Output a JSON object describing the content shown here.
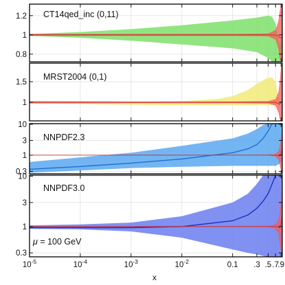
{
  "figure": {
    "xlabel": "x",
    "mu_label": "μ = 100 GeV",
    "mu_label_parts": {
      "symbol": "μ",
      "rest": " = 100 GeV"
    }
  },
  "colors": {
    "reference_band": "#f05a5a",
    "ct14_band": "#7ee06a",
    "mrst_band": "#f2ea78",
    "nnpdf23_band": "#5aa8f0",
    "nnpdf23_line": "#1f6fd0",
    "nnpdf30_band": "#6a7ef0",
    "nnpdf30_line": "#1a2fc0",
    "reference_line": "#c02020"
  },
  "chart_data": [
    {
      "type": "area",
      "panel_label": "CT14qed_inc (0,11)",
      "xscale": "log",
      "yscale": "linear",
      "xlim": [
        1e-05,
        0.95
      ],
      "ylim": [
        0.72,
        1.32
      ],
      "yticks": [
        0.8,
        1,
        1.2
      ],
      "ytick_labels": [
        "0.8",
        "1",
        "1.2"
      ],
      "grid": true,
      "series": [
        {
          "role": "band",
          "color_key": "ct14_band",
          "x": [
            1e-05,
            0.0001,
            0.001,
            0.01,
            0.1,
            0.3,
            0.5,
            0.6,
            0.7,
            0.78,
            0.85,
            0.9,
            0.95
          ],
          "upper": [
            1.01,
            1.03,
            1.06,
            1.1,
            1.15,
            1.18,
            1.2,
            1.19,
            1.12,
            0.98,
            0.9,
            0.98,
            1.05
          ],
          "lower": [
            0.99,
            0.97,
            0.94,
            0.9,
            0.86,
            0.82,
            0.76,
            0.72,
            0.72,
            0.72,
            0.72,
            0.74,
            0.78
          ]
        },
        {
          "role": "reference",
          "color_key": "reference_band",
          "x": [
            1e-05,
            0.001,
            0.1,
            0.5,
            0.7,
            0.8,
            0.85,
            0.9,
            0.95
          ],
          "upper": [
            1.01,
            1.01,
            1.01,
            1.015,
            1.05,
            1.15,
            1.25,
            1.32,
            1.32
          ],
          "lower": [
            0.99,
            0.99,
            0.99,
            0.985,
            0.95,
            0.85,
            0.75,
            0.72,
            0.72
          ]
        }
      ]
    },
    {
      "type": "area",
      "panel_label": "MRST2004 (0,1)",
      "xscale": "log",
      "yscale": "linear",
      "xlim": [
        1e-05,
        0.95
      ],
      "ylim": [
        0.55,
        1.95
      ],
      "yticks": [
        1,
        1.5
      ],
      "ytick_labels": [
        "1",
        "1.5"
      ],
      "grid": true,
      "series": [
        {
          "role": "band",
          "color_key": "mrst_band",
          "x": [
            1e-05,
            0.0001,
            0.001,
            0.01,
            0.05,
            0.1,
            0.2,
            0.3,
            0.5,
            0.6,
            0.7,
            0.78,
            0.85,
            0.9,
            0.95
          ],
          "upper": [
            1.0,
            1.0,
            1.01,
            1.03,
            1.08,
            1.15,
            1.3,
            1.45,
            1.6,
            1.6,
            1.5,
            1.2,
            1.0,
            1.0,
            1.0
          ],
          "lower": [
            0.98,
            0.96,
            0.94,
            0.93,
            0.93,
            0.93,
            0.93,
            0.93,
            0.93,
            0.93,
            0.93,
            0.95,
            1.0,
            1.0,
            1.0
          ]
        },
        {
          "role": "reference",
          "color_key": "reference_band",
          "x": [
            1e-05,
            0.001,
            0.1,
            0.5,
            0.7,
            0.8,
            0.85,
            0.9,
            0.95
          ],
          "upper": [
            1.03,
            1.02,
            1.02,
            1.03,
            1.08,
            1.25,
            1.5,
            1.9,
            1.95
          ],
          "lower": [
            0.97,
            0.98,
            0.98,
            0.97,
            0.92,
            0.75,
            0.6,
            0.55,
            0.55
          ]
        }
      ]
    },
    {
      "type": "area",
      "panel_label": "NNPDF2.3",
      "xscale": "log",
      "yscale": "log",
      "xlim": [
        1e-05,
        0.95
      ],
      "ylim": [
        0.25,
        10.5
      ],
      "yticks": [
        0.3,
        1,
        3,
        10
      ],
      "ytick_labels": [
        "0.3",
        "1",
        "3",
        "10"
      ],
      "grid": true,
      "series": [
        {
          "role": "band",
          "color_key": "nnpdf23_band",
          "x": [
            1e-05,
            0.0001,
            0.001,
            0.01,
            0.1,
            0.2,
            0.3,
            0.4,
            0.5,
            0.6,
            0.7,
            0.8,
            0.9,
            0.95
          ],
          "upper": [
            0.6,
            0.85,
            1.2,
            2.0,
            3.5,
            5.0,
            7.0,
            9.5,
            10.5,
            10.5,
            10.5,
            10.5,
            10.5,
            10.5
          ],
          "lower": [
            0.27,
            0.32,
            0.38,
            0.42,
            0.45,
            0.45,
            0.45,
            0.45,
            0.45,
            0.45,
            0.45,
            0.5,
            0.6,
            0.6
          ]
        },
        {
          "role": "central",
          "color_key": "nnpdf23_line",
          "x": [
            1e-05,
            0.0001,
            0.001,
            0.01,
            0.1,
            0.2,
            0.3,
            0.4,
            0.5,
            0.6
          ],
          "y": [
            0.35,
            0.43,
            0.55,
            0.75,
            1.2,
            1.6,
            2.2,
            3.5,
            6.0,
            10.5
          ]
        },
        {
          "role": "reference",
          "color_key": "reference_band",
          "x": [
            1e-05,
            0.001,
            0.1,
            0.5,
            0.7,
            0.8,
            0.85,
            0.9,
            0.95
          ],
          "upper": [
            1.02,
            1.02,
            1.02,
            1.03,
            1.1,
            1.4,
            2.0,
            4.0,
            10.5
          ],
          "lower": [
            0.98,
            0.98,
            0.98,
            0.97,
            0.9,
            0.7,
            0.45,
            0.3,
            0.25
          ]
        }
      ]
    },
    {
      "type": "area",
      "panel_label": "NNPDF3.0",
      "xscale": "log",
      "yscale": "log",
      "xlim": [
        1e-05,
        0.95
      ],
      "ylim": [
        0.25,
        10.5
      ],
      "yticks": [
        0.3,
        1,
        3,
        10
      ],
      "ytick_labels": [
        "0.3",
        "1",
        "3",
        "10"
      ],
      "xticks": [
        1e-05,
        0.0001,
        0.001,
        0.01,
        0.1,
        0.3,
        0.5,
        0.7,
        0.9
      ],
      "xtick_labels": [
        "10^-5",
        "10^-4",
        "10^-3",
        "10^-2",
        "0.1",
        ".3",
        ".5",
        ".7",
        ".9"
      ],
      "grid": true,
      "series": [
        {
          "role": "band",
          "color_key": "nnpdf30_band",
          "x": [
            1e-05,
            0.0001,
            0.001,
            0.01,
            0.1,
            0.2,
            0.3,
            0.4,
            0.5,
            0.6,
            0.7,
            0.8,
            0.9,
            0.95
          ],
          "upper": [
            1.05,
            1.1,
            1.2,
            1.6,
            3.0,
            4.5,
            7.0,
            10.5,
            10.5,
            10.5,
            10.5,
            10.5,
            10.5,
            10.5
          ],
          "lower": [
            0.9,
            0.88,
            0.8,
            0.6,
            0.35,
            0.3,
            0.28,
            0.26,
            0.25,
            0.25,
            0.25,
            0.25,
            0.25,
            0.25
          ]
        },
        {
          "role": "central",
          "color_key": "nnpdf30_line",
          "x": [
            1e-05,
            0.0001,
            0.001,
            0.01,
            0.1,
            0.2,
            0.3,
            0.4,
            0.5,
            0.6,
            0.7
          ],
          "y": [
            0.95,
            0.95,
            0.95,
            1.0,
            1.3,
            1.7,
            2.3,
            3.2,
            4.5,
            7.0,
            10.5
          ]
        },
        {
          "role": "reference",
          "color_key": "reference_band",
          "x": [
            1e-05,
            0.001,
            0.1,
            0.5,
            0.7,
            0.8,
            0.85,
            0.9,
            0.95
          ],
          "upper": [
            1.02,
            1.02,
            1.02,
            1.03,
            1.1,
            1.4,
            2.0,
            4.0,
            10.5
          ],
          "lower": [
            0.98,
            0.98,
            0.98,
            0.97,
            0.9,
            0.7,
            0.45,
            0.3,
            0.25
          ]
        }
      ]
    }
  ]
}
